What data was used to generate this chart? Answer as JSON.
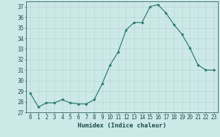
{
  "x": [
    0,
    1,
    2,
    3,
    4,
    5,
    6,
    7,
    8,
    9,
    10,
    11,
    12,
    13,
    14,
    15,
    16,
    17,
    18,
    19,
    20,
    21,
    22,
    23
  ],
  "y": [
    28.8,
    27.5,
    27.9,
    27.9,
    28.2,
    27.9,
    27.8,
    27.8,
    28.2,
    29.7,
    31.5,
    32.7,
    34.8,
    35.5,
    35.5,
    37.0,
    37.2,
    36.4,
    35.3,
    34.4,
    33.1,
    31.5,
    31.0,
    31.0
  ],
  "line_color": "#2a7a6a",
  "marker": "D",
  "marker_size": 1.8,
  "background_color": "#cce9e8",
  "grid_color": "#b8d4d2",
  "xlabel": "Humidex (Indice chaleur)",
  "xlim": [
    -0.5,
    23.5
  ],
  "ylim": [
    27,
    37.5
  ],
  "yticks": [
    27,
    28,
    29,
    30,
    31,
    32,
    33,
    34,
    35,
    36,
    37
  ],
  "xticks": [
    0,
    1,
    2,
    3,
    4,
    5,
    6,
    7,
    8,
    9,
    10,
    11,
    12,
    13,
    14,
    15,
    16,
    17,
    18,
    19,
    20,
    21,
    22,
    23
  ],
  "tick_fontsize": 5.5,
  "xlabel_fontsize": 6.5,
  "tick_color": "#1a4a4a",
  "spine_color": "#2a5a5a"
}
